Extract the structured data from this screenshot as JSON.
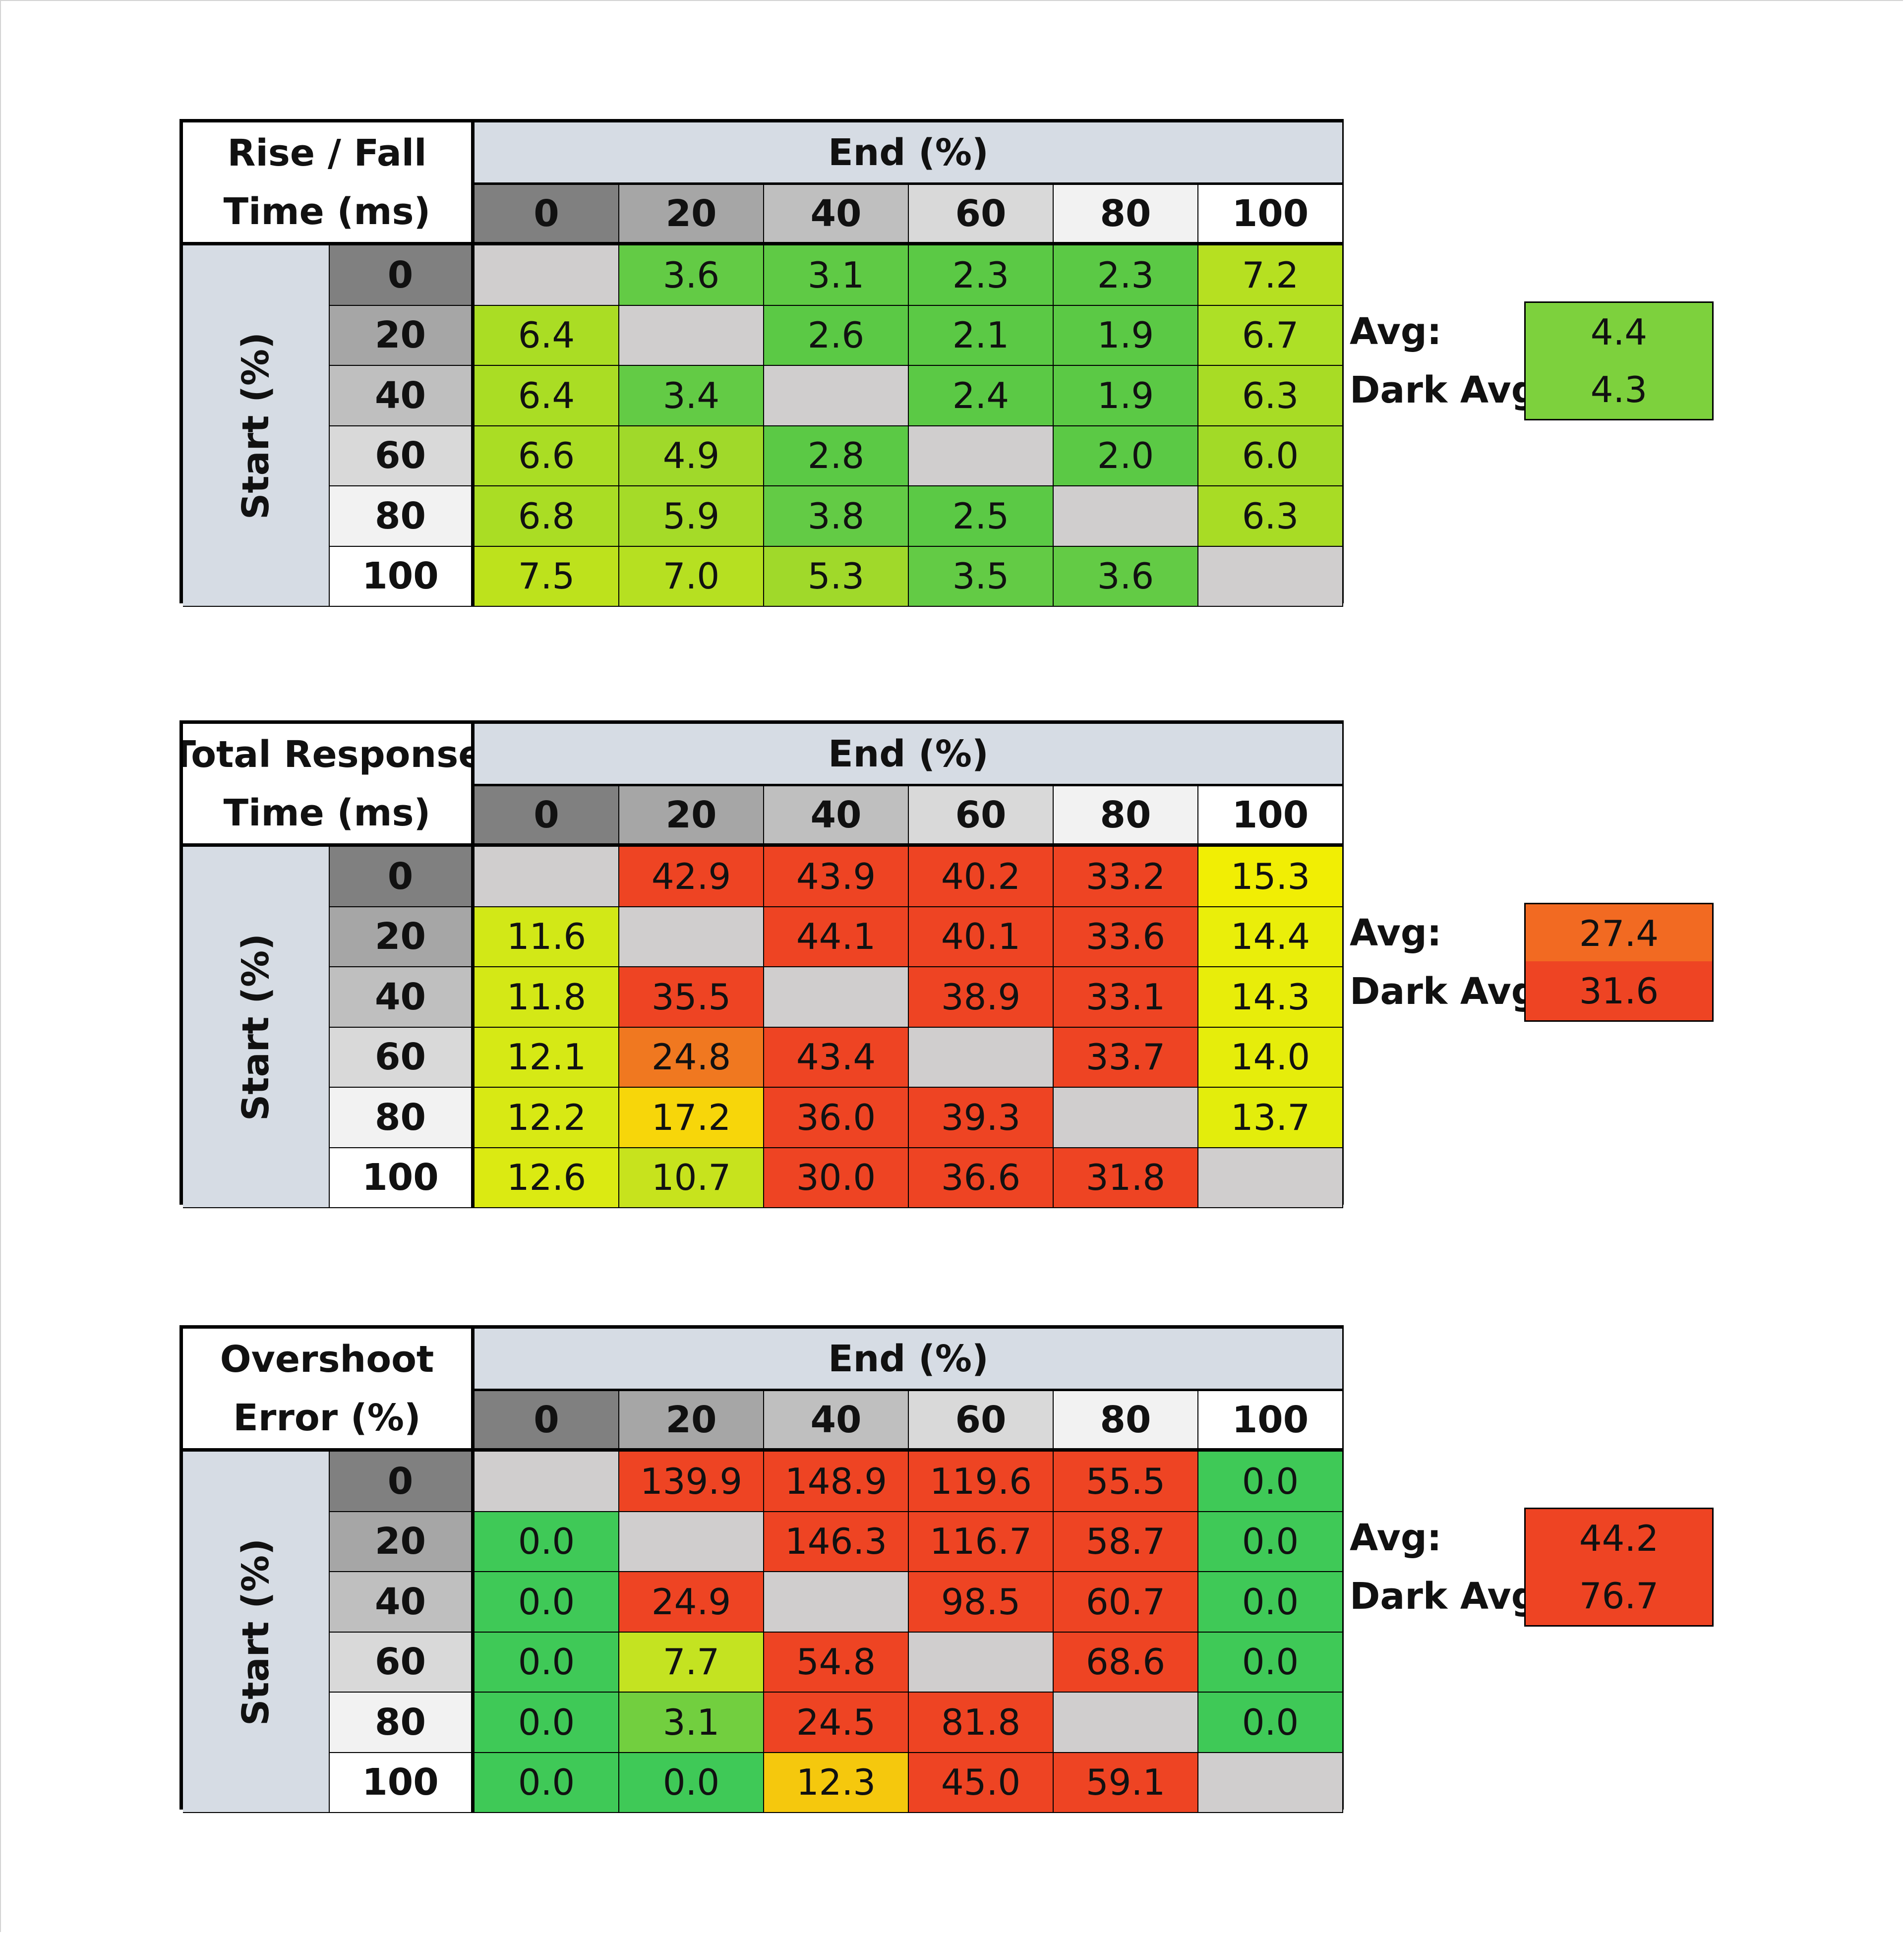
{
  "colors": {
    "header_blue_gray": "#d6dce4",
    "diag_gray": "#d0cece",
    "shade_0": "#808080",
    "shade_20": "#a6a6a6",
    "shade_40": "#bfbfbf",
    "shade_60": "#d9d9d9",
    "shade_80": "#f2f2f2",
    "shade_100": "#ffffff"
  },
  "chart_data": [
    {
      "type": "heatmap",
      "title_lines": [
        "Rise / Fall",
        "Time (ms)"
      ],
      "x_title": "End (%)",
      "y_title": "Start (%)",
      "x_categories": [
        "0",
        "20",
        "40",
        "60",
        "80",
        "100"
      ],
      "y_categories": [
        "0",
        "20",
        "40",
        "60",
        "80",
        "100"
      ],
      "rows": [
        [
          "",
          "3.6",
          "3.1",
          "2.3",
          "2.3",
          "7.2"
        ],
        [
          "6.4",
          "",
          "2.6",
          "2.1",
          "1.9",
          "6.7"
        ],
        [
          "6.4",
          "3.4",
          "",
          "2.4",
          "1.9",
          "6.3"
        ],
        [
          "6.6",
          "4.9",
          "2.8",
          "",
          "2.0",
          "6.0"
        ],
        [
          "6.8",
          "5.9",
          "3.8",
          "2.5",
          "",
          "6.3"
        ],
        [
          "7.5",
          "7.0",
          "5.3",
          "3.5",
          "3.6",
          ""
        ]
      ],
      "colors": [
        [
          "#d0cece",
          "#63cb45",
          "#5fca45",
          "#5bc945",
          "#5bc945",
          "#b6e021"
        ],
        [
          "#aadd24",
          "#d0cece",
          "#5bc945",
          "#5bc945",
          "#5bc945",
          "#ade026"
        ],
        [
          "#aadd24",
          "#63cb45",
          "#d0cece",
          "#5bc945",
          "#5bc945",
          "#a8dc25"
        ],
        [
          "#aadd24",
          "#a0d92a",
          "#5bc945",
          "#d0cece",
          "#5bc945",
          "#a2da27"
        ],
        [
          "#aadd24",
          "#a5db28",
          "#63cb45",
          "#5bc945",
          "#d0cece",
          "#a8dc25"
        ],
        [
          "#bde21c",
          "#b6e021",
          "#a0d92a",
          "#63cb45",
          "#63cb45",
          "#d0cece"
        ]
      ],
      "summary": [
        {
          "label": "Avg:",
          "value": "4.4",
          "color": "#7dd13d"
        },
        {
          "label": "Dark Avg:",
          "value": "4.3",
          "color": "#7dd13d"
        }
      ]
    },
    {
      "type": "heatmap",
      "title_lines": [
        "Total Response",
        "Time (ms)"
      ],
      "x_title": "End (%)",
      "y_title": "Start (%)",
      "x_categories": [
        "0",
        "20",
        "40",
        "60",
        "80",
        "100"
      ],
      "y_categories": [
        "0",
        "20",
        "40",
        "60",
        "80",
        "100"
      ],
      "rows": [
        [
          "",
          "42.9",
          "43.9",
          "40.2",
          "33.2",
          "15.3"
        ],
        [
          "11.6",
          "",
          "44.1",
          "40.1",
          "33.6",
          "14.4"
        ],
        [
          "11.8",
          "35.5",
          "",
          "38.9",
          "33.1",
          "14.3"
        ],
        [
          "12.1",
          "24.8",
          "43.4",
          "",
          "33.7",
          "14.0"
        ],
        [
          "12.2",
          "17.2",
          "36.0",
          "39.3",
          "",
          "13.7"
        ],
        [
          "12.6",
          "10.7",
          "30.0",
          "36.6",
          "31.8",
          ""
        ]
      ],
      "colors": [
        [
          "#d0cece",
          "#ee4423",
          "#ee4423",
          "#ee4423",
          "#ee4423",
          "#f1ee04"
        ],
        [
          "#d2e817",
          "#d0cece",
          "#ee4423",
          "#ee4423",
          "#ee4423",
          "#eaee0a"
        ],
        [
          "#d4e816",
          "#ee4423",
          "#d0cece",
          "#ee4423",
          "#ee4423",
          "#e8ed0a"
        ],
        [
          "#d6e915",
          "#f07820",
          "#ee4423",
          "#d0cece",
          "#ee4423",
          "#e6ed0b"
        ],
        [
          "#d8e914",
          "#f7d60a",
          "#ee4423",
          "#ee4423",
          "#d0cece",
          "#e3ed0c"
        ],
        [
          "#dbea12",
          "#c7e31d",
          "#ee4423",
          "#ee4423",
          "#ee4423",
          "#d0cece"
        ]
      ],
      "summary": [
        {
          "label": "Avg:",
          "value": "27.4",
          "color": "#f26a22"
        },
        {
          "label": "Dark Avg:",
          "value": "31.6",
          "color": "#ee4423"
        }
      ]
    },
    {
      "type": "heatmap",
      "title_lines": [
        "Overshoot",
        "Error (%)"
      ],
      "x_title": "End (%)",
      "y_title": "Start (%)",
      "x_categories": [
        "0",
        "20",
        "40",
        "60",
        "80",
        "100"
      ],
      "y_categories": [
        "0",
        "20",
        "40",
        "60",
        "80",
        "100"
      ],
      "rows": [
        [
          "",
          "139.9",
          "148.9",
          "119.6",
          "55.5",
          "0.0"
        ],
        [
          "0.0",
          "",
          "146.3",
          "116.7",
          "58.7",
          "0.0"
        ],
        [
          "0.0",
          "24.9",
          "",
          "98.5",
          "60.7",
          "0.0"
        ],
        [
          "0.0",
          "7.7",
          "54.8",
          "",
          "68.6",
          "0.0"
        ],
        [
          "0.0",
          "3.1",
          "24.5",
          "81.8",
          "",
          "0.0"
        ],
        [
          "0.0",
          "0.0",
          "12.3",
          "45.0",
          "59.1",
          ""
        ]
      ],
      "colors": [
        [
          "#d0cece",
          "#ee4423",
          "#ee4423",
          "#ee4423",
          "#ee4423",
          "#3fc957"
        ],
        [
          "#3fc957",
          "#d0cece",
          "#ee4423",
          "#ee4423",
          "#ee4423",
          "#3fc957"
        ],
        [
          "#3fc957",
          "#ee4423",
          "#d0cece",
          "#ee4423",
          "#ee4423",
          "#3fc957"
        ],
        [
          "#3fc957",
          "#c4e321",
          "#ee4423",
          "#d0cece",
          "#ee4423",
          "#3fc957"
        ],
        [
          "#3fc957",
          "#72cf3f",
          "#ee4423",
          "#ee4423",
          "#d0cece",
          "#3fc957"
        ],
        [
          "#3fc957",
          "#3fc957",
          "#f5c80d",
          "#ee4423",
          "#ee4423",
          "#d0cece"
        ]
      ],
      "summary": [
        {
          "label": "Avg:",
          "value": "44.2",
          "color": "#ee4423"
        },
        {
          "label": "Dark Avg:",
          "value": "76.7",
          "color": "#ee4423"
        }
      ]
    }
  ]
}
